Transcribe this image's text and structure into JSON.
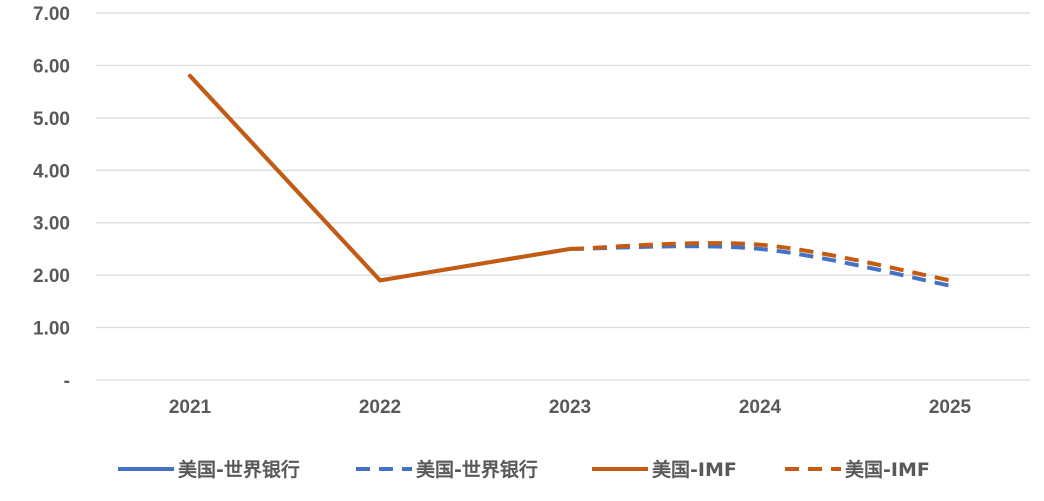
{
  "chart_data": {
    "type": "line",
    "categories": [
      "2021",
      "2022",
      "2023",
      "2024",
      "2025"
    ],
    "y_tick_labels": [
      "-",
      "1.00",
      "2.00",
      "3.00",
      "4.00",
      "5.00",
      "6.00",
      "7.00"
    ],
    "ylim": [
      0,
      7
    ],
    "grid": true,
    "legend_position": "bottom",
    "series": [
      {
        "name": "美国-世界银行",
        "color": "#4472C4",
        "dash": "solid",
        "values": [
          5.8,
          1.9,
          2.5,
          null,
          null
        ]
      },
      {
        "name": "美国-世界银行",
        "color": "#4472C4",
        "dash": "dashed",
        "values": [
          null,
          null,
          2.5,
          2.5,
          1.8
        ]
      },
      {
        "name": "美国-IMF",
        "color": "#C55A11",
        "dash": "solid",
        "values": [
          5.8,
          1.9,
          2.5,
          null,
          null
        ]
      },
      {
        "name": "美国-IMF",
        "color": "#C55A11",
        "dash": "dashed",
        "values": [
          null,
          null,
          2.5,
          2.58,
          1.9
        ]
      }
    ]
  }
}
